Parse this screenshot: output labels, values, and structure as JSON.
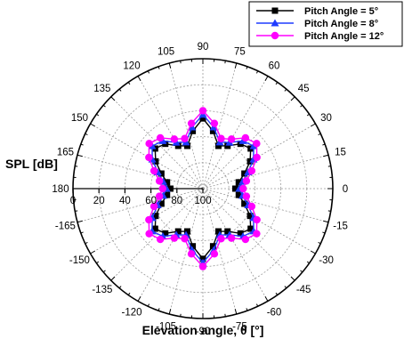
{
  "chart_data": {
    "type": "polar-line",
    "xlabel": "Elevation angle, θ [°]",
    "ylabel": "SPL [dB]",
    "radial_axis": {
      "ticks": [
        100,
        80,
        60,
        40,
        20,
        0
      ],
      "inverted": true,
      "range": [
        0,
        100
      ]
    },
    "angular_ticks": [
      0,
      15,
      30,
      45,
      60,
      75,
      90,
      105,
      120,
      135,
      150,
      165,
      180,
      -165,
      -150,
      -135,
      -120,
      -105,
      -90,
      -75,
      -60,
      -45,
      -30,
      -15
    ],
    "grid": true,
    "legend": {
      "position": "top-right"
    },
    "theta": [
      0,
      10,
      20,
      30,
      40,
      50,
      60,
      70,
      80,
      90,
      100,
      110,
      120,
      130,
      140,
      150,
      160,
      170,
      180,
      190,
      200,
      210,
      220,
      230,
      240,
      250,
      260,
      270,
      280,
      290,
      300,
      310,
      320,
      330,
      340,
      350
    ],
    "series": [
      {
        "name": "Pitch Angle = 5°",
        "color": "#000000",
        "marker": "square",
        "values": [
          75,
          72,
          66,
          58,
          52,
          55,
          62,
          65,
          55,
          46,
          55,
          65,
          62,
          55,
          52,
          58,
          66,
          72,
          75,
          72,
          66,
          58,
          52,
          55,
          62,
          65,
          55,
          46,
          55,
          65,
          62,
          55,
          52,
          58,
          66,
          72
        ]
      },
      {
        "name": "Pitch Angle = 8°",
        "color": "#1f3bff",
        "marker": "triangle",
        "values": [
          72,
          69,
          63,
          55,
          49,
          52,
          59,
          62,
          52,
          43,
          52,
          62,
          59,
          52,
          49,
          55,
          63,
          69,
          72,
          69,
          63,
          55,
          49,
          52,
          59,
          62,
          52,
          43,
          52,
          62,
          59,
          52,
          49,
          55,
          63,
          69
        ]
      },
      {
        "name": "Pitch Angle = 12°",
        "color": "#ff00ff",
        "marker": "circle",
        "values": [
          69,
          66,
          60,
          52,
          46,
          49,
          56,
          59,
          49,
          40,
          49,
          59,
          56,
          49,
          46,
          52,
          60,
          66,
          69,
          66,
          60,
          52,
          46,
          49,
          56,
          59,
          49,
          40,
          49,
          59,
          56,
          49,
          46,
          52,
          60,
          66
        ]
      }
    ]
  }
}
